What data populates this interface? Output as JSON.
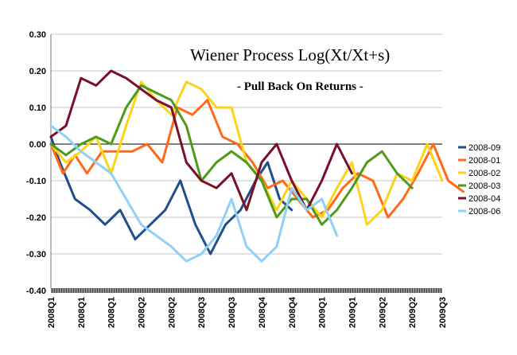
{
  "chart_data": {
    "type": "line",
    "title": "Wiener Process Log(Xt/Xt+s)",
    "subtitle": "- Pull Back On Returns -",
    "xlabel": "",
    "ylabel": "",
    "ylim": [
      -0.4,
      0.3
    ],
    "y_ticks": [
      "0.30",
      "0.20",
      "0.10",
      "0.00",
      "-0.10",
      "-0.20",
      "-0.30",
      "-0.40"
    ],
    "x_tick_labels": [
      "2008Q1",
      "2008Q1",
      "2008Q1",
      "2008Q2",
      "2008Q2",
      "2008Q3",
      "2008Q3",
      "2008Q4",
      "2008Q4",
      "2009Q1",
      "2009Q1",
      "2009Q2",
      "2009Q2",
      "2009Q3"
    ],
    "x_count": 14,
    "legend_position": "right",
    "series": [
      {
        "name": "2008-09",
        "color": "#1f4e8c",
        "x": [
          0,
          0.3,
          0.8,
          1.3,
          1.8,
          2.3,
          2.8,
          3.3,
          3.8,
          4.3,
          4.8,
          5.3,
          5.8,
          6.3,
          6.8,
          7.2,
          7.6,
          8.0
        ],
        "values": [
          0.02,
          -0.05,
          -0.15,
          -0.18,
          -0.22,
          -0.18,
          -0.26,
          -0.22,
          -0.18,
          -0.1,
          -0.22,
          -0.3,
          -0.22,
          -0.18,
          -0.1,
          -0.05,
          -0.15,
          -0.18
        ]
      },
      {
        "name": "2008-01",
        "color": "#ff6a1a",
        "x": [
          0,
          0.4,
          0.8,
          1.2,
          1.7,
          2.2,
          2.7,
          3.2,
          3.7,
          4.2,
          4.7,
          5.2,
          5.7,
          6.2,
          6.7,
          7.2,
          7.7,
          8.2,
          8.7,
          9.2,
          9.7,
          10.2,
          10.7,
          11.2,
          11.7,
          12.2,
          12.7,
          13.2,
          13.7
        ],
        "values": [
          0.0,
          -0.08,
          -0.03,
          -0.08,
          -0.02,
          -0.02,
          -0.02,
          0.0,
          -0.05,
          0.1,
          0.08,
          0.12,
          0.02,
          0.0,
          -0.05,
          -0.12,
          -0.1,
          -0.15,
          -0.2,
          -0.18,
          -0.12,
          -0.08,
          -0.1,
          -0.2,
          -0.15,
          -0.08,
          0.0,
          -0.1,
          -0.13
        ]
      },
      {
        "name": "2008-02",
        "color": "#ffd21a",
        "x": [
          0,
          0.5,
          1.0,
          1.5,
          2.0,
          2.5,
          3.0,
          3.5,
          4.0,
          4.5,
          5.0,
          5.5,
          6.0,
          6.5,
          7.0,
          7.5,
          8.0,
          8.5,
          9.0,
          9.5,
          10.0,
          10.5,
          11.0,
          11.5,
          12.0,
          12.5,
          13.0
        ],
        "values": [
          0.0,
          -0.05,
          -0.02,
          0.02,
          -0.08,
          0.05,
          0.17,
          0.12,
          0.08,
          0.17,
          0.15,
          0.1,
          0.1,
          -0.05,
          -0.1,
          -0.18,
          -0.1,
          -0.15,
          -0.2,
          -0.12,
          -0.05,
          -0.22,
          -0.18,
          -0.08,
          -0.1,
          0.0,
          -0.1
        ]
      },
      {
        "name": "2008-03",
        "color": "#4e9a1a",
        "x": [
          0,
          0.5,
          1.0,
          1.5,
          2.0,
          2.5,
          3.0,
          3.5,
          4.0,
          4.5,
          5.0,
          5.5,
          6.0,
          6.5,
          7.0,
          7.5,
          8.0,
          8.5,
          9.0,
          9.5,
          10.0,
          10.5,
          11.0,
          11.5,
          12.0
        ],
        "values": [
          0.0,
          -0.03,
          0.0,
          0.02,
          0.0,
          0.1,
          0.16,
          0.14,
          0.12,
          0.05,
          -0.1,
          -0.05,
          -0.02,
          -0.05,
          -0.1,
          -0.2,
          -0.15,
          -0.15,
          -0.22,
          -0.18,
          -0.12,
          -0.05,
          -0.02,
          -0.08,
          -0.12
        ]
      },
      {
        "name": "2008-04",
        "color": "#7a0f2a",
        "x": [
          0,
          0.5,
          1.0,
          1.5,
          2.0,
          2.5,
          3.0,
          3.5,
          4.0,
          4.5,
          5.0,
          5.5,
          6.0,
          6.5,
          7.0,
          7.5,
          8.0,
          8.5,
          9.0,
          9.5,
          10.0
        ],
        "values": [
          0.02,
          0.05,
          0.18,
          0.16,
          0.2,
          0.18,
          0.15,
          0.12,
          0.1,
          -0.05,
          -0.1,
          -0.12,
          -0.08,
          -0.18,
          -0.05,
          0.0,
          -0.1,
          -0.18,
          -0.1,
          0.0,
          -0.08
        ]
      },
      {
        "name": "2008-06",
        "color": "#8fd0f7",
        "x": [
          0,
          0.5,
          1.0,
          1.5,
          2.0,
          2.5,
          3.0,
          3.5,
          4.0,
          4.5,
          5.0,
          5.5,
          6.0,
          6.5,
          7.0,
          7.5,
          8.0,
          8.5,
          9.0,
          9.5
        ],
        "values": [
          0.05,
          0.02,
          -0.02,
          -0.05,
          -0.08,
          -0.15,
          -0.22,
          -0.25,
          -0.28,
          -0.32,
          -0.3,
          -0.25,
          -0.15,
          -0.28,
          -0.32,
          -0.28,
          -0.12,
          -0.18,
          -0.15,
          -0.25
        ]
      }
    ]
  }
}
